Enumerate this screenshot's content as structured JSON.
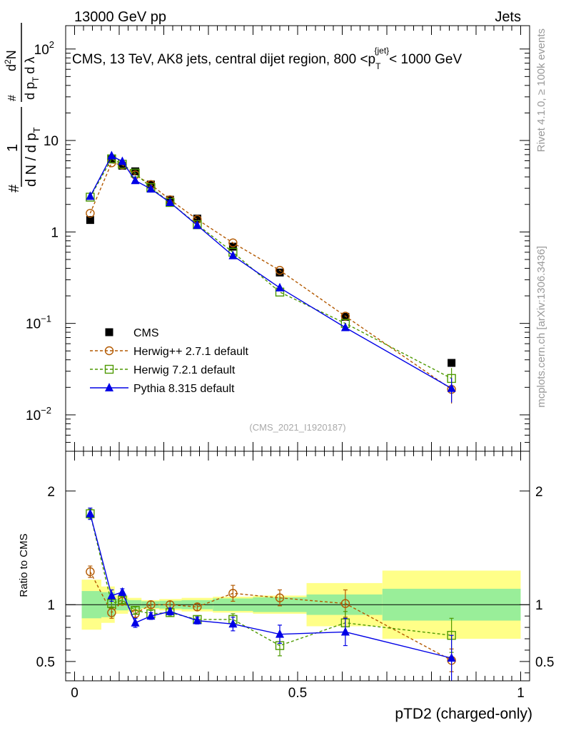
{
  "header": {
    "left": "13000 GeV pp",
    "right": "Jets"
  },
  "side_labels": {
    "rivet": "Rivet 4.1.0, ≥ 100k events",
    "mcplots": "mcplots.cern.ch [arXiv:1306.3436]"
  },
  "analysis_id": "(CMS_2021_I1920187)",
  "main_title": {
    "prefix": "CMS, 13 TeV, AK8 jets, central dijet region, 800 <p",
    "sub": "T",
    "sup": "{jet}",
    "suffix": "< 1000 GeV"
  },
  "y_label_main": {
    "hash": "#",
    "one": "1",
    "dN": "d N / d p",
    "dN_sub": "T",
    "hash2": "#",
    "num": "d",
    "num_sup": "2",
    "num_N": "N",
    "den": "d p",
    "den_sub": "T",
    "den_lambda": "d λ"
  },
  "y_label_ratio": "Ratio to CMS",
  "x_label": "pTD2 (charged-only)",
  "main_ticks": [
    {
      "value": 0.01,
      "base": "10",
      "exp": "−2"
    },
    {
      "value": 0.1,
      "base": "10",
      "exp": "−1"
    },
    {
      "value": 1,
      "base": "1",
      "exp": ""
    },
    {
      "value": 10,
      "base": "10",
      "exp": ""
    },
    {
      "value": 100,
      "base": "10",
      "exp": "2"
    }
  ],
  "ratio_ticks": [
    {
      "value": 0.5,
      "label": "0.5"
    },
    {
      "value": 1,
      "label": "1"
    },
    {
      "value": 2,
      "label": "2"
    }
  ],
  "x_ticks": [
    {
      "value": 0,
      "label": "0"
    },
    {
      "value": 0.5,
      "label": "0.5"
    },
    {
      "value": 1,
      "label": "1"
    }
  ],
  "chart_data": {
    "type": "scatter",
    "title": "CMS, 13 TeV, AK8 jets, central dijet region, 800 < pT jet < 1000 GeV",
    "xlabel": "pTD2 (charged-only)",
    "ylabel": "1/N dN/dλ",
    "xlim": [
      -0.02,
      1.02
    ],
    "ylim": [
      0.004,
      180
    ],
    "yscale": "log",
    "ratio_ylim": [
      0.33,
      2.35
    ],
    "bins": [
      {
        "lo": 0.0,
        "hi": 0.06
      },
      {
        "lo": 0.06,
        "hi": 0.09
      },
      {
        "lo": 0.09,
        "hi": 0.12
      },
      {
        "lo": 0.12,
        "hi": 0.15
      },
      {
        "lo": 0.15,
        "hi": 0.19
      },
      {
        "lo": 0.19,
        "hi": 0.24
      },
      {
        "lo": 0.24,
        "hi": 0.31
      },
      {
        "lo": 0.31,
        "hi": 0.4
      },
      {
        "lo": 0.4,
        "hi": 0.52
      },
      {
        "lo": 0.52,
        "hi": 0.69
      },
      {
        "lo": 0.69,
        "hi": 1.0
      }
    ],
    "x": [
      0.035,
      0.083,
      0.107,
      0.136,
      0.171,
      0.214,
      0.275,
      0.355,
      0.46,
      0.607,
      0.845
    ],
    "data": {
      "name": "CMS",
      "values": [
        1.35,
        6.2,
        5.3,
        4.6,
        3.3,
        2.25,
        1.4,
        0.69,
        0.36,
        0.118,
        0.037
      ],
      "stat_band": [
        0.12,
        0.11,
        0.05,
        0.04,
        0.03,
        0.035,
        0.04,
        0.055,
        0.065,
        0.09,
        0.14
      ],
      "total_band": [
        0.22,
        0.16,
        0.08,
        0.06,
        0.04,
        0.05,
        0.06,
        0.07,
        0.08,
        0.19,
        0.3
      ]
    },
    "series": [
      {
        "name": "Herwig++ 2.7.1 default",
        "color": "#b35900",
        "marker": "open-circle",
        "linestyle": "dashed",
        "values": [
          1.6,
          5.7,
          5.4,
          4.2,
          3.3,
          2.25,
          1.37,
          0.76,
          0.38,
          0.12,
          0.019
        ],
        "ratio": [
          1.29,
          0.93,
          1.03,
          0.92,
          1.0,
          1.0,
          0.98,
          1.1,
          1.06,
          1.01,
          0.51
        ],
        "ratio_err": [
          0.05,
          0.05,
          0.03,
          0.03,
          0.03,
          0.03,
          0.03,
          0.07,
          0.07,
          0.12,
          0.1
        ]
      },
      {
        "name": "Herwig 7.2.1 default",
        "color": "#4d9900",
        "marker": "open-square",
        "linestyle": "dashed",
        "values": [
          2.4,
          6.3,
          5.5,
          4.4,
          3.05,
          2.1,
          1.2,
          0.6,
          0.22,
          0.1,
          0.025
        ],
        "ratio": [
          1.8,
          1.01,
          1.04,
          0.95,
          0.92,
          0.93,
          0.87,
          0.87,
          0.64,
          0.84,
          0.73
        ],
        "ratio_err": [
          0.04,
          0.04,
          0.03,
          0.03,
          0.03,
          0.03,
          0.03,
          0.05,
          0.09,
          0.1,
          0.15
        ]
      },
      {
        "name": "Pythia 8.315 default",
        "color": "#0000e6",
        "marker": "filled-triangle",
        "linestyle": "solid",
        "values": [
          2.45,
          6.8,
          5.9,
          3.65,
          2.95,
          2.1,
          1.18,
          0.55,
          0.245,
          0.09,
          0.0195
        ],
        "ratio": [
          1.8,
          1.08,
          1.11,
          0.84,
          0.9,
          0.94,
          0.86,
          0.83,
          0.74,
          0.76,
          0.53
        ],
        "ratio_err": [
          0.05,
          0.05,
          0.03,
          0.04,
          0.03,
          0.03,
          0.03,
          0.06,
          0.08,
          0.12,
          0.2
        ]
      }
    ]
  }
}
